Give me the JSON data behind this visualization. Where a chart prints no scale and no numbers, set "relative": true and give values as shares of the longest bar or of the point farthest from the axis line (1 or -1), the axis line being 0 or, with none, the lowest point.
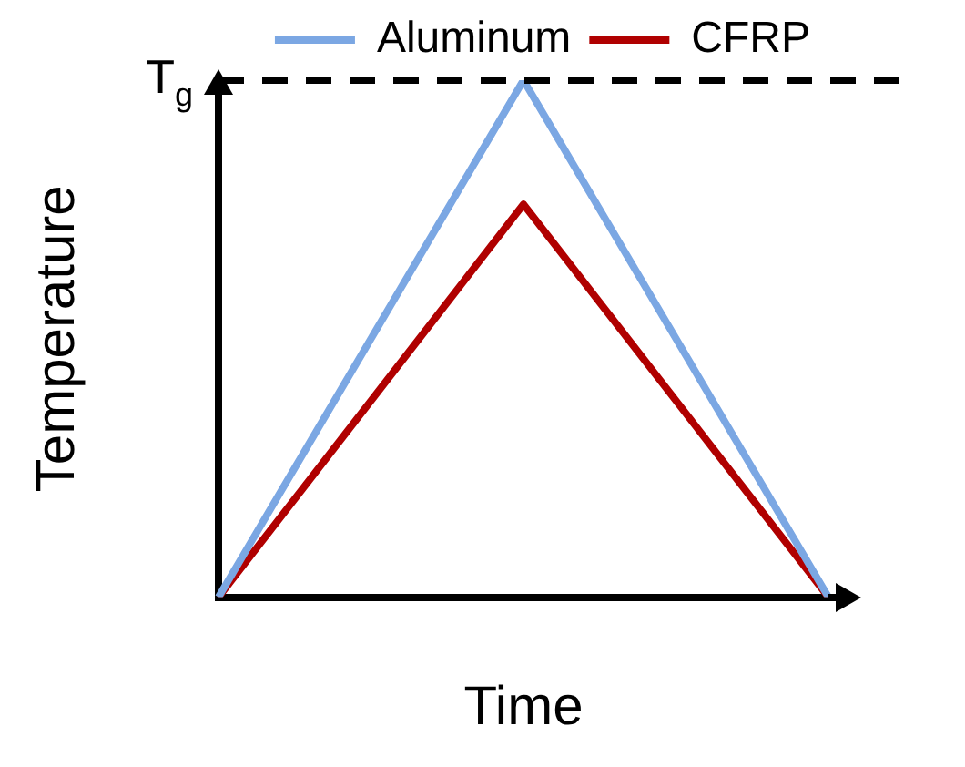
{
  "chart_data": {
    "type": "line",
    "relative": true,
    "xlabel": "Time",
    "ylabel": "Temperature",
    "categories": [
      null,
      null,
      null
    ],
    "series": [
      {
        "name": "Aluminum",
        "color": "#7ba7e3",
        "values": [
          0,
          1,
          0
        ]
      },
      {
        "name": "CFRP",
        "color": "#b00000",
        "values": [
          0,
          0.76,
          0
        ]
      }
    ],
    "ref_lines": [
      {
        "axis": "y",
        "value": 1,
        "label": "T$_{g}$",
        "color": "#000000",
        "line_style": "dashed"
      }
    ],
    "legend": "top right",
    "grid": false,
    "marker": "none",
    "line_style": "solid"
  }
}
